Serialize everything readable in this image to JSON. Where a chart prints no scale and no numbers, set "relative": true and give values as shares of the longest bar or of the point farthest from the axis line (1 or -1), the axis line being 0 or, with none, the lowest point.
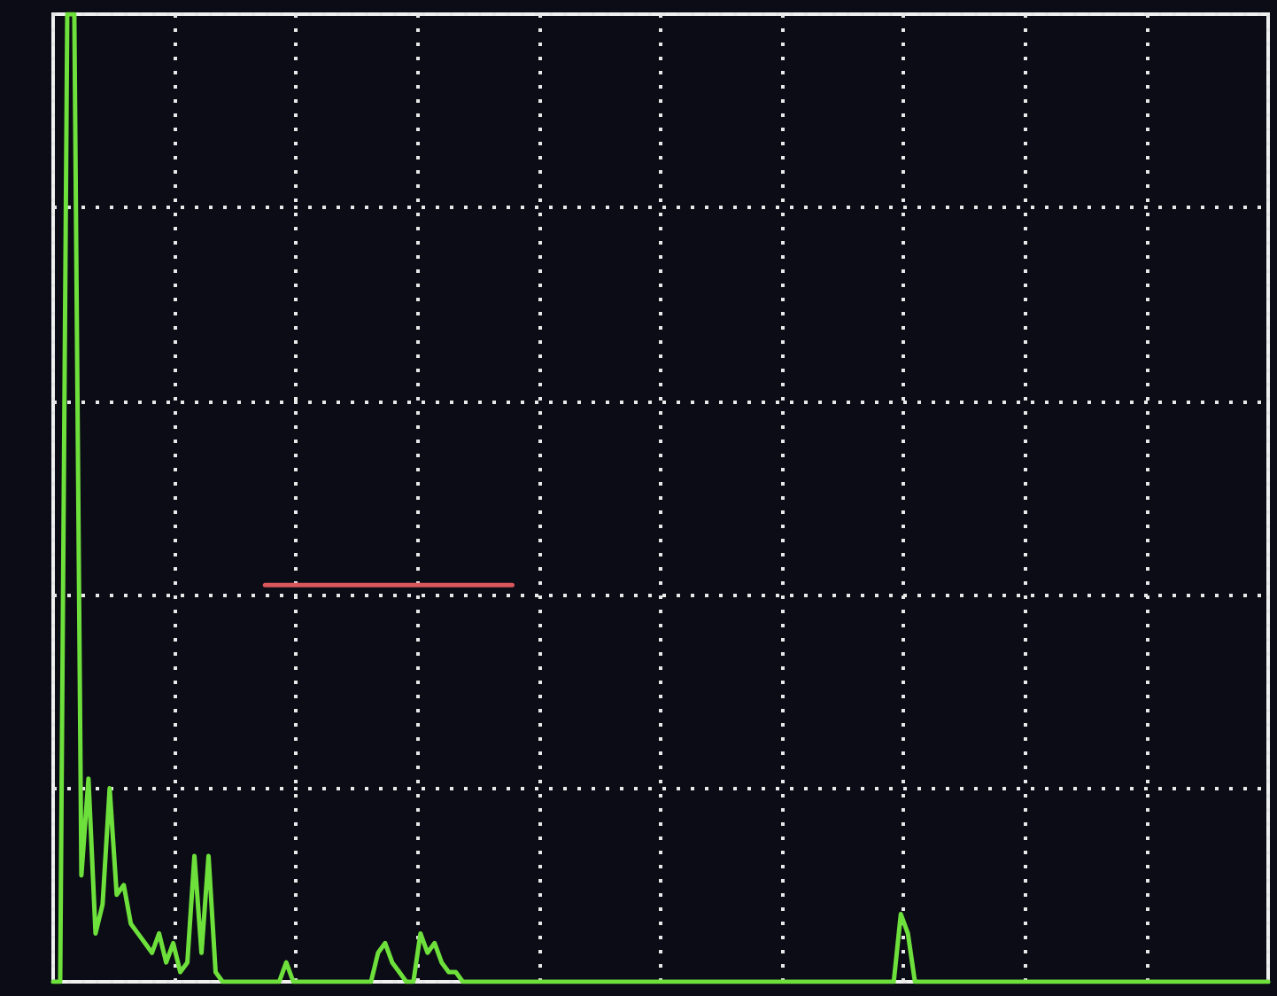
{
  "chart_data": {
    "type": "line",
    "relative": true,
    "grid": true,
    "marker": "none",
    "line_style": "solid",
    "categories": [
      null,
      null,
      null,
      null,
      null,
      null,
      null,
      null,
      null,
      null,
      null,
      null,
      null,
      null,
      null,
      null,
      null,
      null,
      null,
      null,
      null,
      null,
      null,
      null,
      null,
      null,
      null,
      null,
      null,
      null,
      null,
      null,
      null,
      null,
      null,
      null,
      null,
      null,
      null,
      null,
      null,
      null,
      null,
      null,
      null,
      null,
      null,
      null,
      null,
      null,
      null,
      null,
      null,
      null,
      null,
      null,
      null,
      null,
      null,
      null,
      null,
      null,
      null,
      null,
      null,
      null,
      null,
      null,
      null,
      null,
      null,
      null,
      null,
      null,
      null,
      null,
      null,
      null,
      null,
      null,
      null,
      null,
      null,
      null,
      null,
      null,
      null,
      null,
      null,
      null,
      null,
      null,
      null,
      null,
      null,
      null,
      null,
      null,
      null,
      null,
      null,
      null,
      null,
      null,
      null,
      null,
      null,
      null,
      null,
      null,
      null,
      null,
      null,
      null,
      null,
      null,
      null,
      null,
      null,
      null,
      null,
      null,
      null,
      null,
      null,
      null,
      null,
      null,
      null,
      null,
      null,
      null,
      null,
      null,
      null,
      null,
      null,
      null,
      null,
      null,
      null,
      null,
      null,
      null,
      null,
      null,
      null,
      null,
      null,
      null,
      null,
      null,
      null,
      null,
      null,
      null,
      null,
      null,
      null,
      null,
      null,
      null,
      null,
      null,
      null,
      null,
      null,
      null,
      null,
      null,
      null,
      null,
      null
    ],
    "series": [
      {
        "color": "#6ee03c",
        "values": [
          0,
          0,
          1,
          1,
          0.11,
          0.21,
          0.05,
          0.08,
          0.2,
          0.09,
          0.1,
          0.06,
          0.05,
          0.04,
          0.03,
          0.05,
          0.02,
          0.04,
          0.01,
          0.02,
          0.13,
          0.03,
          0.13,
          0.01,
          0,
          0,
          0,
          0,
          0,
          0,
          0,
          0,
          0,
          0.02,
          0,
          0,
          0,
          0,
          0,
          0,
          0,
          0,
          0,
          0,
          0,
          0,
          0.03,
          0.04,
          0.02,
          0.01,
          0,
          0,
          0.05,
          0.03,
          0.04,
          0.02,
          0.01,
          0.01,
          0,
          0,
          0,
          0,
          0,
          0,
          0,
          0,
          0,
          0,
          0,
          0,
          0,
          0,
          0,
          0,
          0,
          0,
          0,
          0,
          0,
          0,
          0,
          0,
          0,
          0,
          0,
          0,
          0,
          0,
          0,
          0,
          0,
          0,
          0,
          0,
          0,
          0,
          0,
          0,
          0,
          0,
          0,
          0,
          0,
          0,
          0,
          0,
          0,
          0,
          0,
          0,
          0,
          0,
          0,
          0,
          0,
          0,
          0,
          0,
          0,
          0,
          0.07,
          0.05,
          0,
          0,
          0,
          0,
          0,
          0,
          0,
          0,
          0,
          0,
          0,
          0,
          0,
          0,
          0,
          0,
          0,
          0,
          0,
          0,
          0,
          0,
          0,
          0,
          0,
          0,
          0,
          0,
          0,
          0,
          0,
          0,
          0,
          0,
          0,
          0,
          0,
          0,
          0,
          0,
          0,
          0,
          0,
          0,
          0,
          0,
          0,
          0,
          0,
          0,
          0
        ]
      },
      {
        "color": "#d9585c",
        "values": [
          null,
          null,
          null,
          null,
          null,
          null,
          null,
          null,
          null,
          null,
          null,
          null,
          null,
          null,
          null,
          null,
          null,
          null,
          null,
          null,
          null,
          null,
          null,
          null,
          null,
          null,
          null,
          null,
          null,
          null,
          0.41,
          0.41,
          0.41,
          0.41,
          0.41,
          0.41,
          0.41,
          0.41,
          0.41,
          0.41,
          0.41,
          0.41,
          0.41,
          0.41,
          0.41,
          0.41,
          0.41,
          0.41,
          0.41,
          0.41,
          0.41,
          0.41,
          0.41,
          0.41,
          0.41,
          0.41,
          0.41,
          0.41,
          0.41,
          0.41,
          0.41,
          0.41,
          0.41,
          0.41,
          0.41,
          0.41,
          null,
          null,
          null,
          null,
          null,
          null,
          null,
          null,
          null,
          null,
          null,
          null,
          null,
          null,
          null,
          null,
          null,
          null,
          null,
          null,
          null,
          null,
          null,
          null,
          null,
          null,
          null,
          null,
          null,
          null,
          null,
          null,
          null,
          null,
          null,
          null,
          null,
          null,
          null,
          null,
          null,
          null,
          null,
          null,
          null,
          null,
          null,
          null,
          null,
          null,
          null,
          null,
          null,
          null,
          null,
          null,
          null,
          null,
          null,
          null,
          null,
          null,
          null,
          null,
          null,
          null,
          null,
          null,
          null,
          null,
          null,
          null,
          null,
          null,
          null,
          null,
          null,
          null,
          null,
          null,
          null,
          null,
          null,
          null,
          null,
          null,
          null,
          null,
          null,
          null,
          null,
          null,
          null,
          null,
          null,
          null,
          null,
          null,
          null,
          null,
          null,
          null,
          null,
          null,
          null,
          null,
          null
        ]
      }
    ]
  }
}
